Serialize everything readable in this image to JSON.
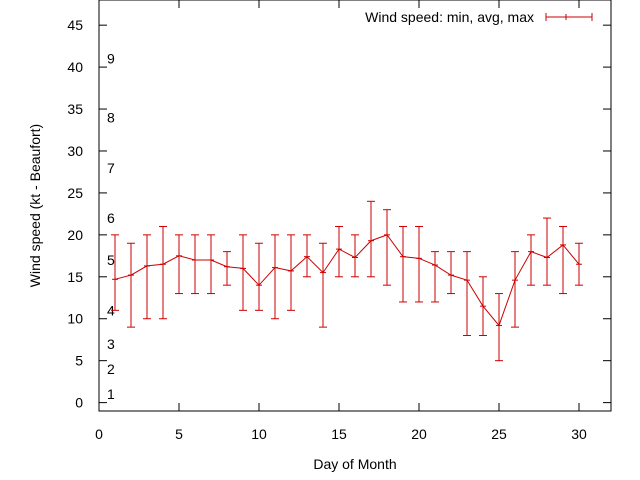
{
  "chart_data": {
    "type": "line",
    "title": "",
    "xlabel": "Day of Month",
    "ylabel": "Wind speed (kt - Beaufort)",
    "xlim": [
      0,
      32
    ],
    "ylim": [
      -1,
      48
    ],
    "xticks": [
      0,
      5,
      10,
      15,
      20,
      25,
      30
    ],
    "yticks": [
      0,
      5,
      10,
      15,
      20,
      25,
      30,
      35,
      40,
      45
    ],
    "grid": false,
    "legend_position": "top-right",
    "series_color": "#cc0000",
    "series": [
      {
        "name": "Wind speed: min, avg, max",
        "x": [
          1,
          2,
          3,
          4,
          5,
          6,
          7,
          8,
          9,
          10,
          11,
          12,
          13,
          14,
          15,
          16,
          17,
          18,
          19,
          20,
          21,
          22,
          23,
          24,
          25,
          26,
          27,
          28,
          29,
          30
        ],
        "avg": [
          14.7,
          15.2,
          16.3,
          16.5,
          17.5,
          17.0,
          17.0,
          16.2,
          16.0,
          14.0,
          16.1,
          15.7,
          17.4,
          15.5,
          18.3,
          17.3,
          19.3,
          20.0,
          17.4,
          17.2,
          16.4,
          15.2,
          14.6,
          11.5,
          9.2,
          14.6,
          18.0,
          17.3,
          18.8,
          16.5
        ],
        "min": [
          11,
          9,
          10,
          10,
          13,
          13,
          13,
          14,
          11,
          11,
          10,
          11,
          15,
          9,
          15,
          15,
          15,
          14,
          12,
          12,
          12,
          13,
          8,
          8,
          5,
          9,
          14,
          14,
          13,
          14
        ],
        "max": [
          20,
          19,
          20,
          21,
          20,
          20,
          20,
          18,
          20,
          19,
          20,
          20,
          20,
          19,
          21,
          20,
          24,
          23,
          21,
          21,
          18,
          18,
          18,
          15,
          13,
          18,
          20,
          22,
          21,
          19
        ]
      }
    ],
    "annotations": [
      {
        "text": "1",
        "y": 1
      },
      {
        "text": "2",
        "y": 4
      },
      {
        "text": "3",
        "y": 7
      },
      {
        "text": "4",
        "y": 11
      },
      {
        "text": "5",
        "y": 17
      },
      {
        "text": "6",
        "y": 22
      },
      {
        "text": "7",
        "y": 28
      },
      {
        "text": "8",
        "y": 34
      },
      {
        "text": "9",
        "y": 41
      }
    ]
  }
}
